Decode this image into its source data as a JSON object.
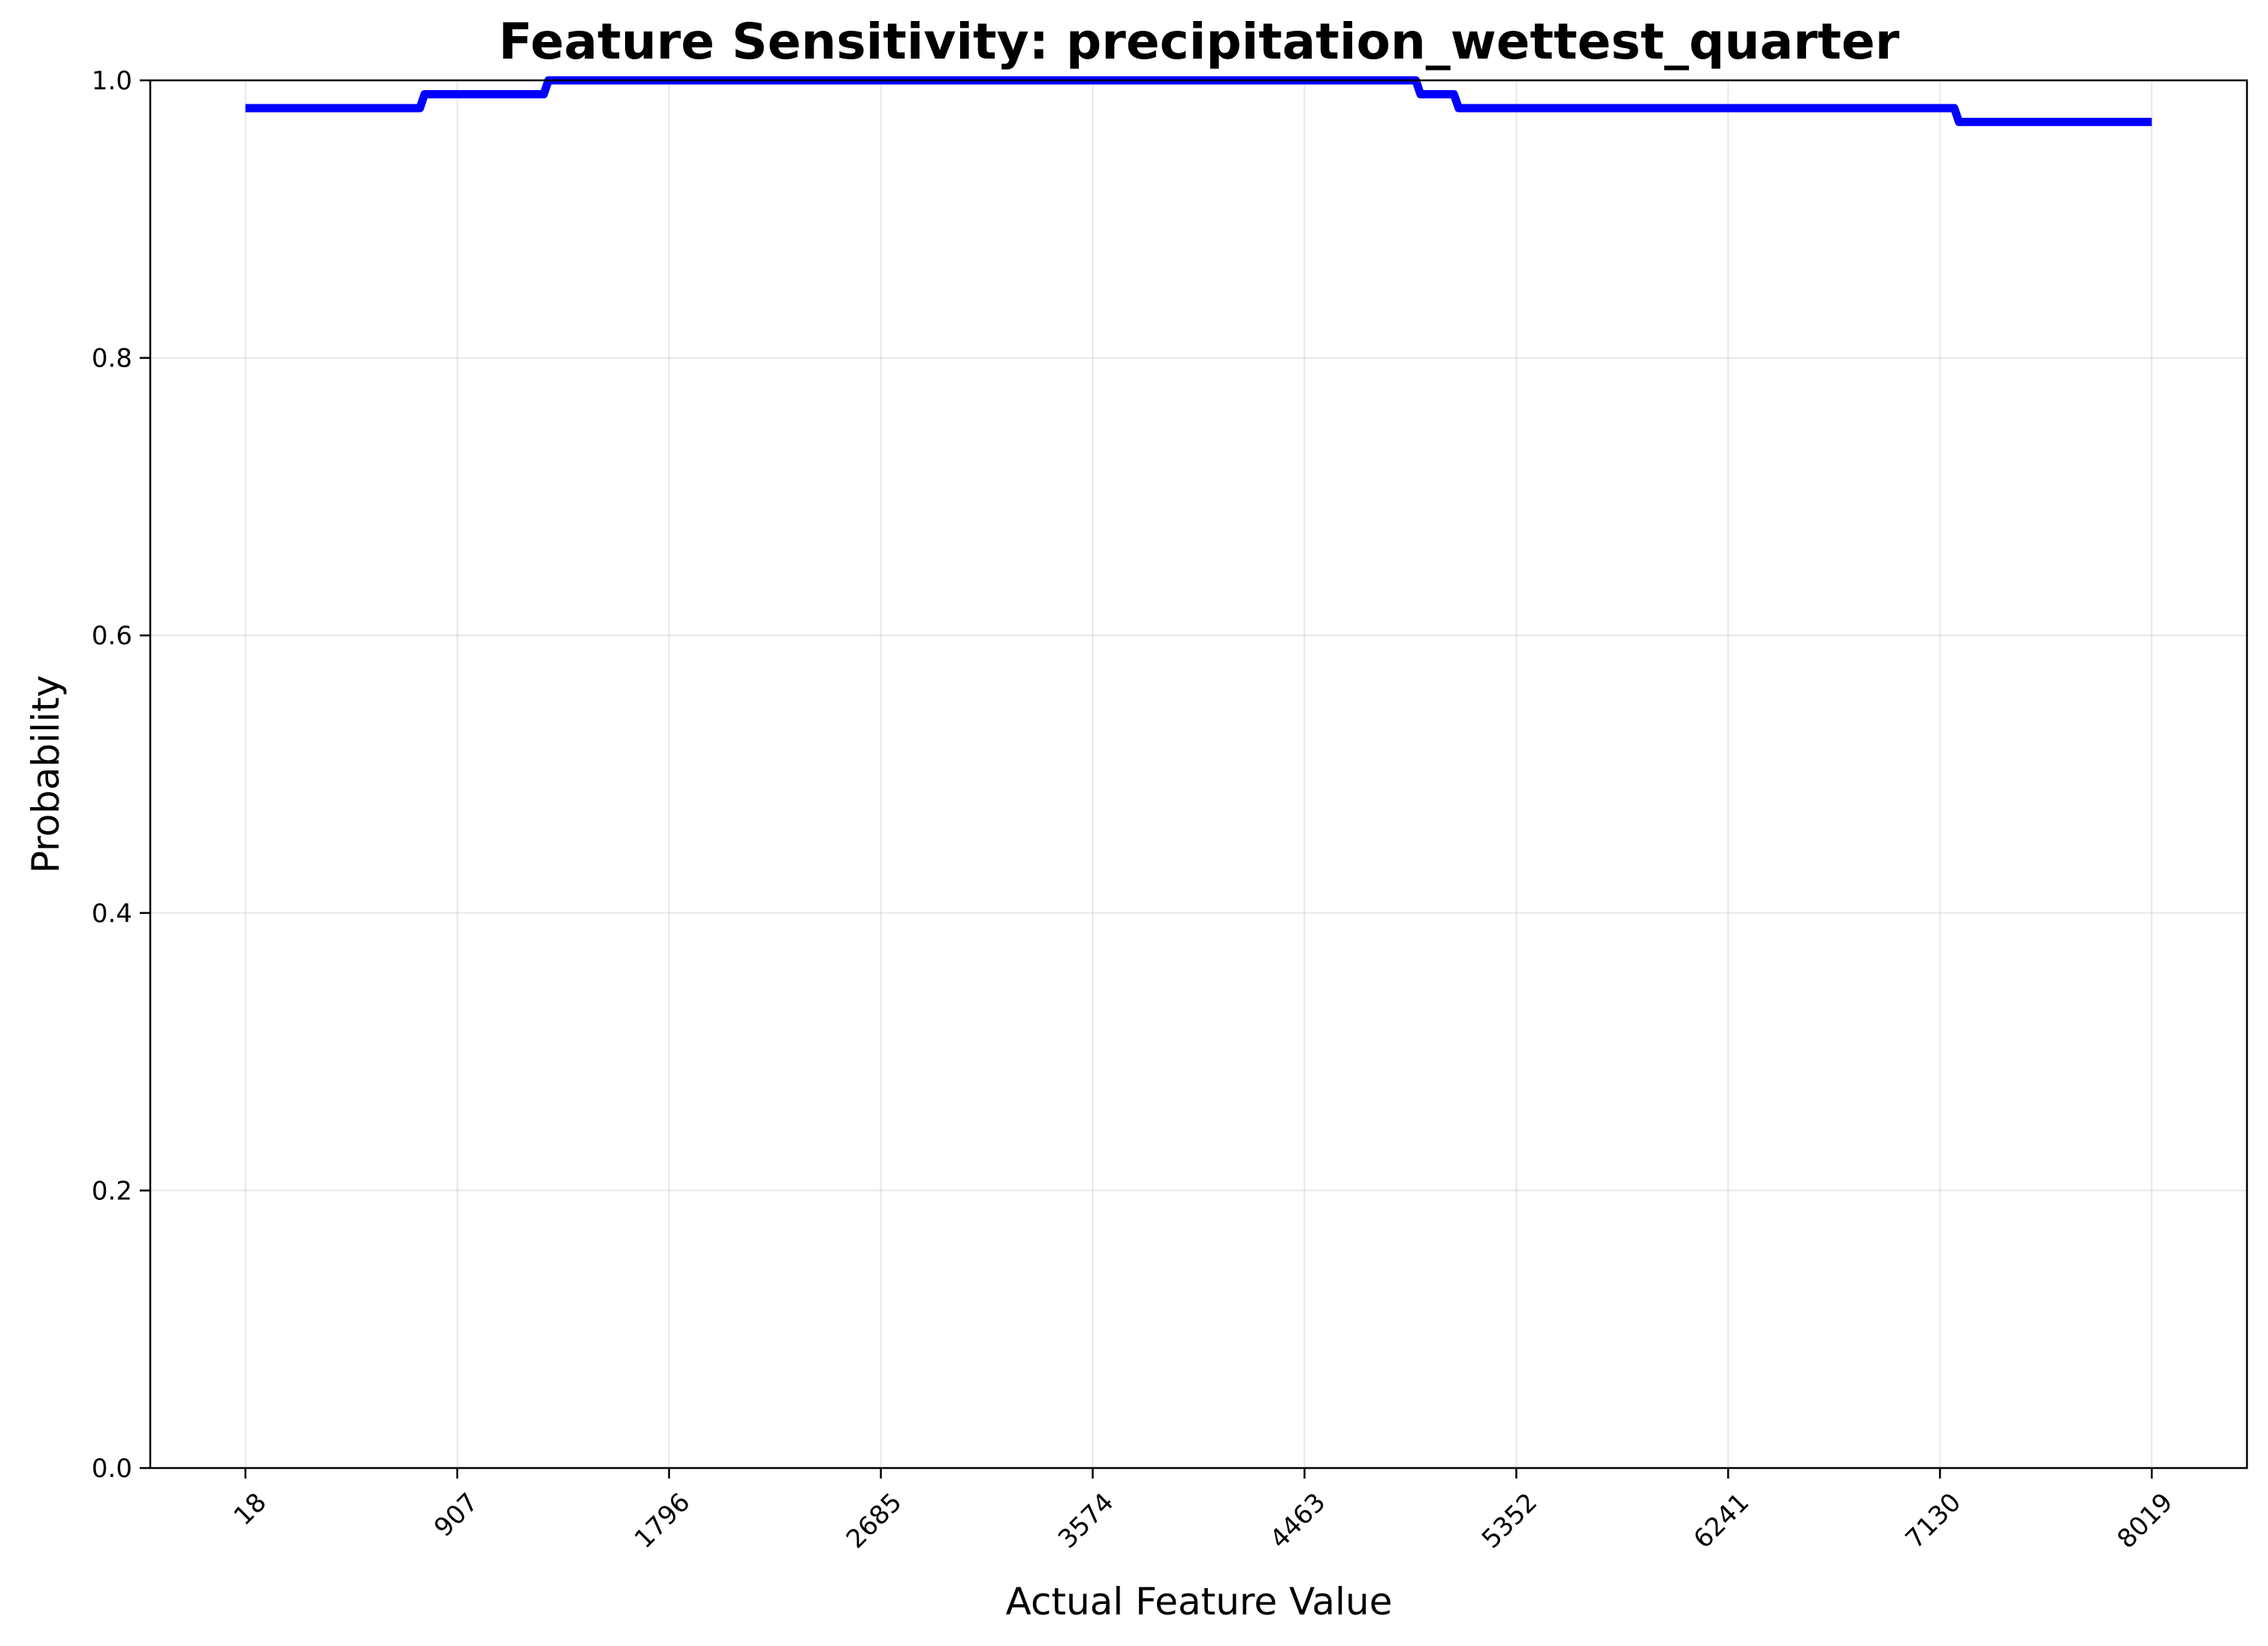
{
  "chart_data": {
    "type": "line",
    "title": "Feature Sensitivity: precipitation_wettest_quarter",
    "xlabel": "Actual Feature Value",
    "ylabel": "Probability",
    "xlim": [
      -381.5,
      8418.5
    ],
    "ylim": [
      0.0,
      1.0
    ],
    "x_ticks": [
      18,
      907,
      1796,
      2685,
      3574,
      4463,
      5352,
      6241,
      7130,
      8019
    ],
    "x_tick_labels": [
      "18",
      "907",
      "1796",
      "2685",
      "3574",
      "4463",
      "5352",
      "6241",
      "7130",
      "8019"
    ],
    "y_ticks": [
      0.0,
      0.2,
      0.4,
      0.6,
      0.8,
      1.0
    ],
    "y_tick_labels": [
      "0.0",
      "0.2",
      "0.4",
      "0.6",
      "0.8",
      "1.0"
    ],
    "grid": true,
    "line_color": "#0000ff",
    "series": [
      {
        "x": [
          18,
          750,
          770,
          1270,
          1290,
          4930,
          4950,
          5090,
          5110,
          7190,
          7210,
          8019
        ],
        "y": [
          0.98,
          0.98,
          0.99,
          0.99,
          1.0,
          1.0,
          0.99,
          0.99,
          0.98,
          0.98,
          0.97,
          0.97
        ]
      }
    ]
  }
}
